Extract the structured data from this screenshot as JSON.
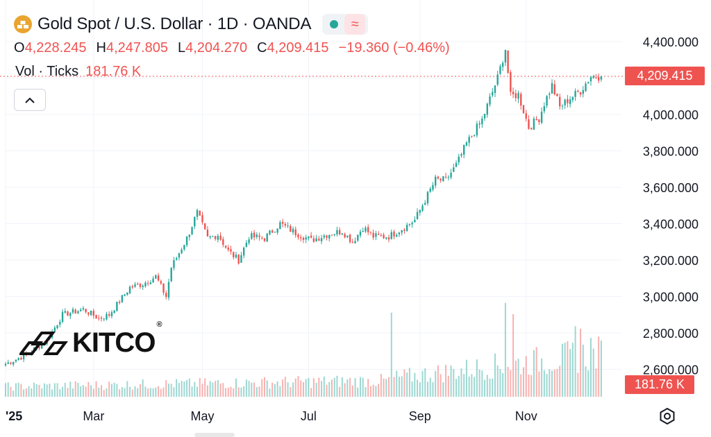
{
  "header": {
    "title": "Gold Spot / U.S. Dollar · 1D · OANDA",
    "wave_symbol": "≈",
    "ohlc": [
      {
        "k": "O",
        "v": "4,228.245"
      },
      {
        "k": "H",
        "v": "4,247.805"
      },
      {
        "k": "L",
        "v": "4,204.270"
      },
      {
        "k": "C",
        "v": "4,209.415"
      }
    ],
    "change": "−19.360 (−0.46%)",
    "vol_label": "Vol · Ticks",
    "vol_value": "181.76 K"
  },
  "price_tag": "4,209.415",
  "vol_tag": "181.76 K",
  "watermark": "KITCO",
  "watermark_reg": "®",
  "colors": {
    "up": "#26a69a",
    "down": "#ef5350",
    "grid": "#f0f3fa",
    "text": "#131722"
  },
  "chart_data": {
    "type": "candlestick",
    "title": "Gold Spot / U.S. Dollar · 1D · OANDA",
    "ylim": [
      2480,
      4470
    ],
    "y_ticks": [
      {
        "value": 2600,
        "label": "2,600.000"
      },
      {
        "value": 2800,
        "label": "2,800.000"
      },
      {
        "value": 3000,
        "label": "3,000.000"
      },
      {
        "value": 3200,
        "label": "3,200.000"
      },
      {
        "value": 3400,
        "label": "3,400.000"
      },
      {
        "value": 3600,
        "label": "3,600.000"
      },
      {
        "value": 3800,
        "label": "3,800.000"
      },
      {
        "value": 4000,
        "label": "4,000.000"
      },
      {
        "value": 4200,
        "label": "4,200.000"
      },
      {
        "value": 4400,
        "label": "4,400.000"
      }
    ],
    "x_ticks": [
      {
        "index": 0,
        "label": "'25"
      },
      {
        "index": 34,
        "label": "Mar"
      },
      {
        "index": 76,
        "label": "May"
      },
      {
        "index": 117,
        "label": "Jul"
      },
      {
        "index": 160,
        "label": "Sep"
      },
      {
        "index": 201,
        "label": "Nov"
      }
    ],
    "last_close": 4209.415,
    "anchors": [
      [
        0,
        2630
      ],
      [
        8,
        2680
      ],
      [
        16,
        2760
      ],
      [
        22,
        2900
      ],
      [
        30,
        2930
      ],
      [
        36,
        2880
      ],
      [
        40,
        2900
      ],
      [
        48,
        3050
      ],
      [
        53,
        3070
      ],
      [
        58,
        3110
      ],
      [
        62,
        3000
      ],
      [
        64,
        3160
      ],
      [
        70,
        3320
      ],
      [
        74,
        3460
      ],
      [
        78,
        3320
      ],
      [
        82,
        3340
      ],
      [
        86,
        3250
      ],
      [
        90,
        3200
      ],
      [
        94,
        3330
      ],
      [
        100,
        3320
      ],
      [
        106,
        3400
      ],
      [
        112,
        3350
      ],
      [
        118,
        3310
      ],
      [
        124,
        3340
      ],
      [
        130,
        3360
      ],
      [
        134,
        3300
      ],
      [
        138,
        3380
      ],
      [
        142,
        3330
      ],
      [
        148,
        3330
      ],
      [
        154,
        3380
      ],
      [
        158,
        3420
      ],
      [
        162,
        3530
      ],
      [
        166,
        3640
      ],
      [
        170,
        3640
      ],
      [
        174,
        3720
      ],
      [
        178,
        3840
      ],
      [
        184,
        3970
      ],
      [
        190,
        4200
      ],
      [
        193,
        4360
      ],
      [
        195,
        4100
      ],
      [
        198,
        4110
      ],
      [
        202,
        3930
      ],
      [
        206,
        3980
      ],
      [
        208,
        4060
      ],
      [
        211,
        4160
      ],
      [
        214,
        4040
      ],
      [
        218,
        4090
      ],
      [
        222,
        4130
      ],
      [
        226,
        4210
      ],
      [
        230,
        4209.415
      ]
    ],
    "volume": {
      "label": "Vol · Ticks",
      "last": "181.76 K",
      "max": 300000,
      "spikes": [
        {
          "index": 149,
          "value": 260000
        },
        {
          "index": 193,
          "value": 290000
        },
        {
          "index": 196,
          "value": 255000
        },
        {
          "index": 220,
          "value": 218000
        },
        {
          "index": 222,
          "value": 210000
        },
        {
          "index": 226,
          "value": 181760
        }
      ]
    }
  }
}
